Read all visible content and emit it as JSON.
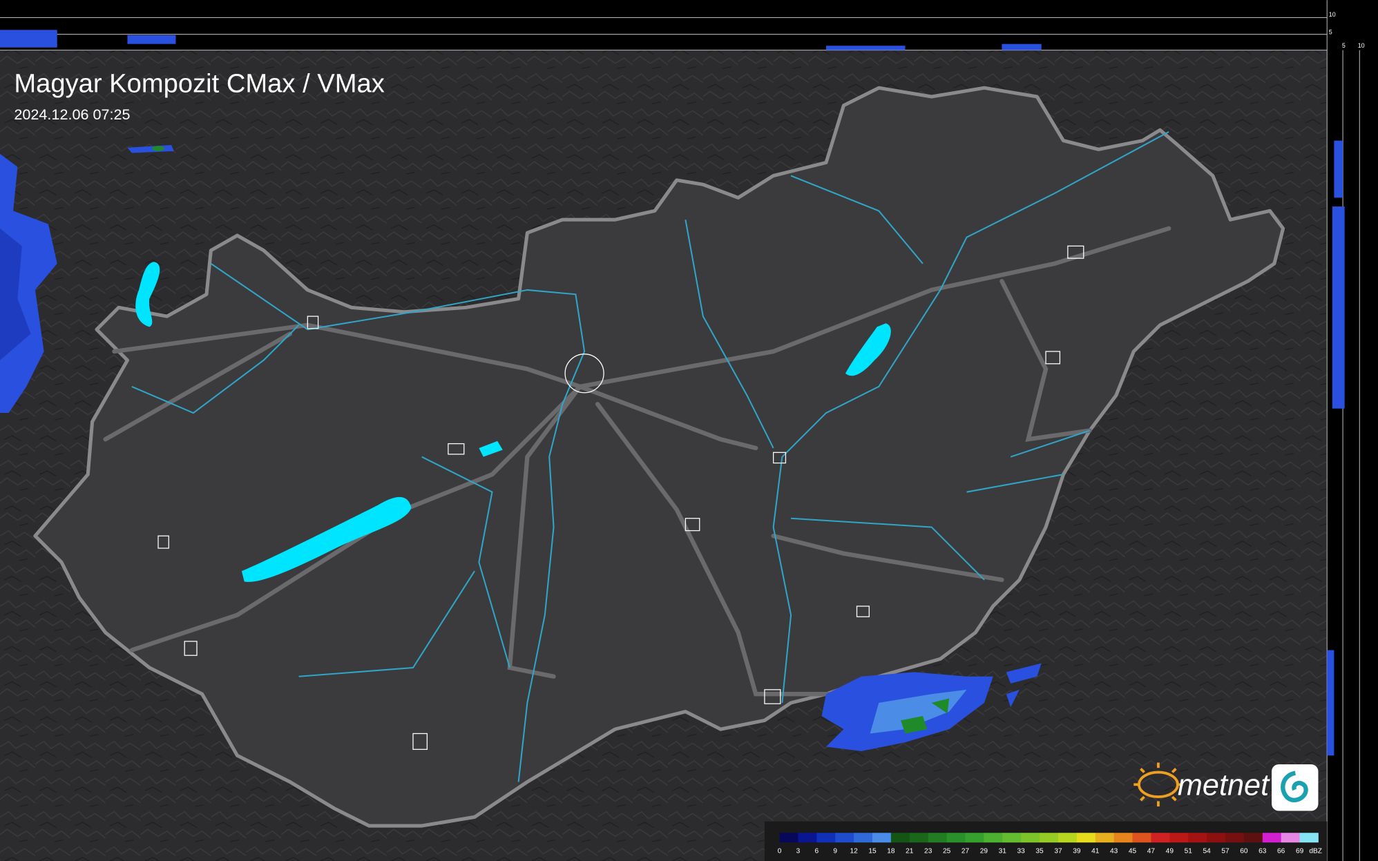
{
  "header": {
    "title": "Magyar Kompozit CMax / VMax",
    "timestamp": "2024.12.06 07:25"
  },
  "side_scale": {
    "right_labels": [
      10,
      5
    ],
    "bottom_labels": [
      5,
      10
    ]
  },
  "logo": {
    "brand": "metnet"
  },
  "legend": {
    "unit": "dBZ",
    "items": [
      {
        "value": 0,
        "color": "#08085a"
      },
      {
        "value": 3,
        "color": "#0a1590"
      },
      {
        "value": 6,
        "color": "#1030b8"
      },
      {
        "value": 9,
        "color": "#1e4ccc"
      },
      {
        "value": 12,
        "color": "#2f6ad8"
      },
      {
        "value": 15,
        "color": "#4a8ce6"
      },
      {
        "value": 18,
        "color": "#145414"
      },
      {
        "value": 21,
        "color": "#1a661a"
      },
      {
        "value": 23,
        "color": "#227c22"
      },
      {
        "value": 25,
        "color": "#2a902a"
      },
      {
        "value": 27,
        "color": "#36a02e"
      },
      {
        "value": 29,
        "color": "#4cb030"
      },
      {
        "value": 31,
        "color": "#64bc30"
      },
      {
        "value": 33,
        "color": "#7cc42a"
      },
      {
        "value": 35,
        "color": "#96cc24"
      },
      {
        "value": 37,
        "color": "#b6d620"
      },
      {
        "value": 39,
        "color": "#e6dc1e"
      },
      {
        "value": 41,
        "color": "#e8b01e"
      },
      {
        "value": 43,
        "color": "#e6841e"
      },
      {
        "value": 45,
        "color": "#de541e"
      },
      {
        "value": 47,
        "color": "#d02222"
      },
      {
        "value": 49,
        "color": "#bc1818"
      },
      {
        "value": 51,
        "color": "#a41212"
      },
      {
        "value": 54,
        "color": "#8c1010"
      },
      {
        "value": 57,
        "color": "#741010"
      },
      {
        "value": 60,
        "color": "#5c1010"
      },
      {
        "value": 63,
        "color": "#d020d0"
      },
      {
        "value": 66,
        "color": "#e488e4"
      },
      {
        "value": 69,
        "color": "#86e4f2"
      }
    ]
  }
}
